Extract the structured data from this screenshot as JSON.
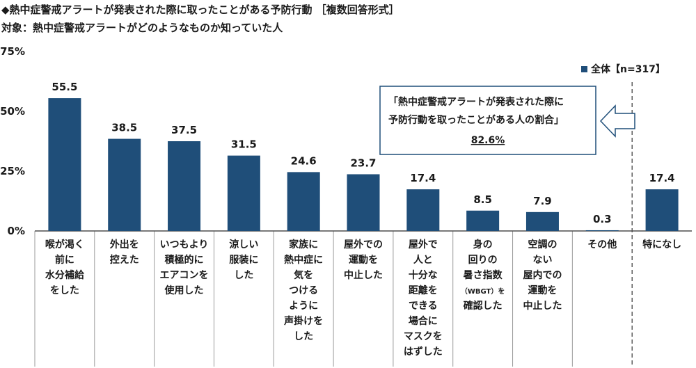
{
  "header": {
    "title": "◆熱中症警戒アラートが発表された際に取ったことがある予防行動 ［複数回答形式］",
    "subtitle": "対象：熱中症警戒アラートがどのようなものか知っていた人"
  },
  "legend": {
    "label": "全体【n=317】"
  },
  "callout": {
    "line1": "「熱中症警戒アラートが発表された際に",
    "line2": "予防行動を取ったことがある人の割合」",
    "value": "82.6%"
  },
  "colors": {
    "bar": "#1f4e79",
    "axis": "#4d4d4d",
    "text": "#1a1a1a"
  },
  "chart_data": {
    "type": "bar",
    "title": "◆熱中症警戒アラートが発表された際に取ったことがある予防行動 ［複数回答形式］",
    "ylim": [
      0,
      75
    ],
    "yticks": [
      "0%",
      "25%",
      "50%",
      "75%"
    ],
    "grid": false,
    "legend_position": "top-right",
    "categories": [
      [
        "喉が渇く",
        "前に",
        "水分補給",
        "をした"
      ],
      [
        "外出を",
        "控えた"
      ],
      [
        "いつもより",
        "積極的に",
        "エアコンを",
        "使用した"
      ],
      [
        "涼しい",
        "服装に",
        "した"
      ],
      [
        "家族に",
        "熱中症に",
        "気を",
        "つける",
        "ように",
        "声掛けを",
        "した"
      ],
      [
        "屋外での",
        "運動を",
        "中止した"
      ],
      [
        "屋外で",
        "人と",
        "十分な",
        "距離を",
        "できる",
        "場合に",
        "マスクを",
        "はずした"
      ],
      [
        "身の",
        "回りの",
        "暑さ指数",
        "（WBGT）を",
        "確認した"
      ],
      [
        "空調の",
        "ない",
        "屋内での",
        "運動を",
        "中止した"
      ],
      [
        "その他"
      ],
      [
        "特になし"
      ]
    ],
    "series": [
      {
        "name": "全体【n=317】",
        "values": [
          55.5,
          38.5,
          37.5,
          31.5,
          24.6,
          23.7,
          17.4,
          8.5,
          7.9,
          0.3,
          17.4
        ]
      }
    ],
    "value_labels": [
      "55.5",
      "38.5",
      "37.5",
      "31.5",
      "24.6",
      "23.7",
      "17.4",
      "8.5",
      "7.9",
      "0.3",
      "17.4"
    ]
  }
}
